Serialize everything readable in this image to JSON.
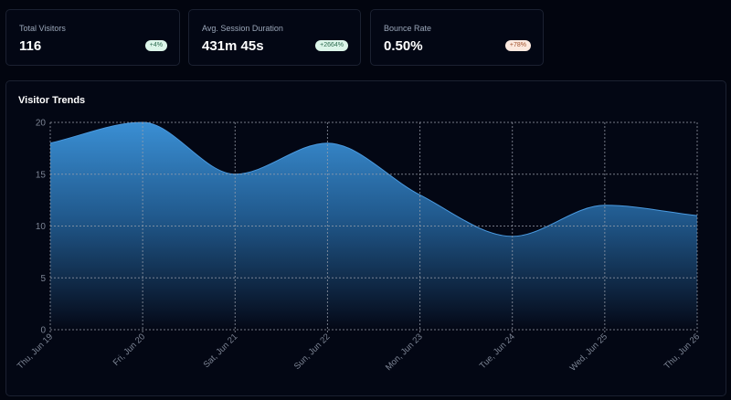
{
  "stats": [
    {
      "label": "Total Visitors",
      "value": "116",
      "change": "+4%",
      "trend": "up"
    },
    {
      "label": "Avg. Session Duration",
      "value": "431m 45s",
      "change": "+2664%",
      "trend": "up"
    },
    {
      "label": "Bounce Rate",
      "value": "0.50%",
      "change": "+78%",
      "trend": "down"
    }
  ],
  "panel": {
    "title": "Visitor Trends"
  },
  "colors": {
    "background": "#02050f",
    "card": "#030714",
    "border": "#1b2131",
    "area_top": "#3a8fd4",
    "area_bottom": "#040816",
    "grid": "#9aa0ac",
    "tick": "#7c8494"
  },
  "chart_data": {
    "type": "area",
    "title": "Visitor Trends",
    "categories": [
      "Thu, Jun 19",
      "Fri, Jun 20",
      "Sat, Jun 21",
      "Sun, Jun 22",
      "Mon, Jun 23",
      "Tue, Jun 24",
      "Wed, Jun 25",
      "Thu, Jun 26"
    ],
    "values": [
      18,
      20,
      15,
      18,
      13,
      9,
      12,
      11
    ],
    "yticks": [
      "0",
      "5",
      "10",
      "15",
      "20"
    ],
    "ylim": [
      0,
      20
    ],
    "xlabel": "",
    "ylabel": "",
    "grid": true,
    "legend": false,
    "curve": "smooth"
  }
}
